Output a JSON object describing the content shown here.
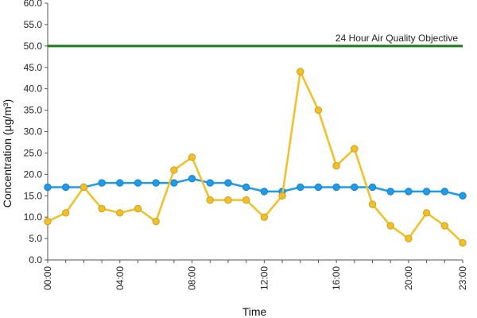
{
  "chart_data": {
    "type": "line",
    "title": "",
    "xlabel": "Time",
    "ylabel": "Concentration (µg/m³)",
    "ylim": [
      0,
      60
    ],
    "yticks": [
      "0.0",
      "5.0",
      "10.0",
      "15.0",
      "20.0",
      "25.0",
      "30.0",
      "35.0",
      "40.0",
      "45.0",
      "50.0",
      "55.0",
      "60.0"
    ],
    "xtick_labels": [
      "00:00",
      "04:00",
      "08:00",
      "12:00",
      "16:00",
      "20:00",
      "23:00"
    ],
    "xtick_hours": [
      0,
      4,
      8,
      12,
      16,
      20,
      23
    ],
    "x": [
      0,
      1,
      2,
      3,
      4,
      5,
      6,
      7,
      8,
      9,
      10,
      11,
      12,
      13,
      14,
      15,
      16,
      17,
      18,
      19,
      20,
      21,
      22,
      23
    ],
    "xlim": [
      0,
      23
    ],
    "grid": false,
    "series": [
      {
        "color": "#1E9BE9",
        "marker_edge": "#1B7FC8",
        "values": [
          17,
          17,
          17,
          18,
          18,
          18,
          18,
          18,
          19,
          18,
          18,
          17,
          16,
          16,
          17,
          17,
          17,
          17,
          17,
          16,
          16,
          16,
          16,
          15
        ]
      },
      {
        "color": "#F2C025",
        "marker_edge": "#C9A227",
        "values": [
          9,
          11,
          17,
          12,
          11,
          12,
          9,
          21,
          24,
          14,
          14,
          14,
          10,
          15,
          44,
          35,
          22,
          26,
          13,
          8,
          5,
          11,
          8,
          4
        ]
      }
    ],
    "annotations": [
      {
        "label": "24 Hour Air Quality Objective",
        "y": 50,
        "color": "#1A7A1A"
      }
    ]
  }
}
